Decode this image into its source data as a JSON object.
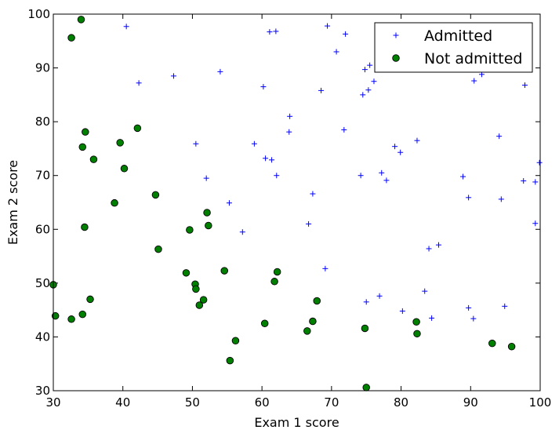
{
  "chart_data": {
    "type": "scatter",
    "title": "",
    "xlabel": "Exam 1 score",
    "ylabel": "Exam 2 score",
    "xlim": [
      30,
      100
    ],
    "ylim": [
      30,
      100
    ],
    "xticks": [
      "30",
      "40",
      "50",
      "60",
      "70",
      "80",
      "90",
      "100"
    ],
    "yticks": [
      "30",
      "40",
      "50",
      "60",
      "70",
      "80",
      "90",
      "100"
    ],
    "grid": false,
    "legend_position": "top-right",
    "series": [
      {
        "name": "Admitted",
        "marker": "plus",
        "color": "#0000ff",
        "points": [
          [
            40.5,
            97.7
          ],
          [
            42.3,
            87.2
          ],
          [
            47.3,
            88.5
          ],
          [
            54.0,
            89.3
          ],
          [
            61.1,
            96.7
          ],
          [
            62.0,
            96.8
          ],
          [
            69.4,
            97.8
          ],
          [
            70.7,
            93.0
          ],
          [
            72.0,
            96.3
          ],
          [
            60.2,
            86.5
          ],
          [
            64.0,
            81.0
          ],
          [
            68.5,
            85.8
          ],
          [
            74.8,
            89.7
          ],
          [
            75.5,
            90.5
          ],
          [
            75.3,
            85.9
          ],
          [
            74.5,
            85.0
          ],
          [
            76.1,
            87.5
          ],
          [
            90.5,
            87.6
          ],
          [
            91.6,
            88.8
          ],
          [
            97.8,
            86.8
          ],
          [
            50.5,
            75.9
          ],
          [
            58.9,
            75.9
          ],
          [
            60.5,
            73.2
          ],
          [
            61.4,
            72.9
          ],
          [
            62.1,
            70.0
          ],
          [
            63.9,
            78.1
          ],
          [
            71.8,
            78.5
          ],
          [
            79.1,
            75.4
          ],
          [
            79.9,
            74.3
          ],
          [
            82.3,
            76.5
          ],
          [
            94.1,
            77.3
          ],
          [
            52.0,
            69.5
          ],
          [
            67.3,
            66.6
          ],
          [
            74.2,
            70.0
          ],
          [
            77.2,
            70.5
          ],
          [
            77.9,
            69.1
          ],
          [
            88.9,
            69.8
          ],
          [
            89.7,
            65.9
          ],
          [
            94.4,
            65.6
          ],
          [
            97.6,
            69.0
          ],
          [
            99.3,
            68.8
          ],
          [
            99.9,
            72.4
          ],
          [
            55.3,
            64.9
          ],
          [
            57.2,
            59.5
          ],
          [
            66.7,
            61.0
          ],
          [
            99.3,
            61.1
          ],
          [
            69.1,
            52.7
          ],
          [
            84.0,
            56.4
          ],
          [
            85.4,
            57.1
          ],
          [
            83.4,
            48.5
          ],
          [
            75.0,
            46.5
          ],
          [
            76.9,
            47.6
          ],
          [
            80.2,
            44.8
          ],
          [
            84.4,
            43.5
          ],
          [
            89.7,
            45.4
          ],
          [
            90.4,
            43.4
          ],
          [
            94.9,
            45.7
          ]
        ]
      },
      {
        "name": "Not admitted",
        "marker": "circle",
        "color": "#008000",
        "points": [
          [
            34.0,
            99.0
          ],
          [
            32.6,
            95.6
          ],
          [
            34.6,
            78.1
          ],
          [
            34.2,
            75.3
          ],
          [
            35.8,
            73.0
          ],
          [
            42.1,
            78.8
          ],
          [
            39.6,
            76.1
          ],
          [
            40.2,
            71.3
          ],
          [
            44.7,
            66.4
          ],
          [
            38.8,
            64.9
          ],
          [
            34.5,
            60.4
          ],
          [
            52.1,
            63.1
          ],
          [
            52.3,
            60.7
          ],
          [
            49.6,
            59.9
          ],
          [
            45.1,
            56.3
          ],
          [
            54.6,
            52.3
          ],
          [
            62.2,
            52.1
          ],
          [
            61.8,
            50.3
          ],
          [
            49.1,
            51.9
          ],
          [
            50.4,
            49.8
          ],
          [
            50.5,
            48.9
          ],
          [
            51.6,
            46.9
          ],
          [
            51.0,
            45.9
          ],
          [
            30.0,
            49.7
          ],
          [
            35.3,
            47.0
          ],
          [
            67.9,
            46.7
          ],
          [
            30.3,
            43.9
          ],
          [
            32.6,
            43.3
          ],
          [
            34.2,
            44.2
          ],
          [
            60.4,
            42.5
          ],
          [
            67.3,
            42.9
          ],
          [
            66.5,
            41.1
          ],
          [
            74.8,
            41.6
          ],
          [
            82.2,
            42.8
          ],
          [
            82.3,
            40.6
          ],
          [
            56.2,
            39.3
          ],
          [
            93.1,
            38.8
          ],
          [
            95.9,
            38.2
          ],
          [
            55.4,
            35.6
          ],
          [
            75.0,
            30.6
          ]
        ]
      }
    ]
  }
}
